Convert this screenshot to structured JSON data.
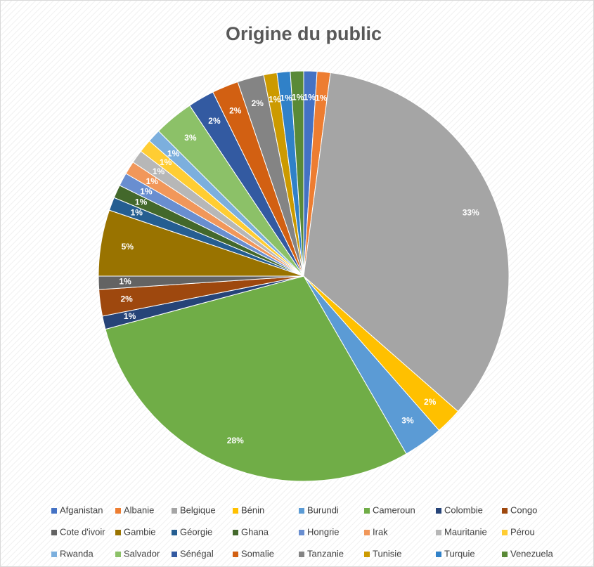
{
  "chart_data": {
    "type": "pie",
    "title": "Origine du public",
    "categories": [
      "Afganistan",
      "Albanie",
      "Belgique",
      "Bénin",
      "Burundi",
      "Cameroun",
      "Colombie",
      "Congo",
      "Cote d'ivoir",
      "Gambie",
      "Géorgie",
      "Ghana",
      "Hongrie",
      "Irak",
      "Mauritanie",
      "Pérou",
      "Rwanda",
      "Salvador",
      "Sénégal",
      "Somalie",
      "Tanzanie",
      "Tunisie",
      "Turquie",
      "Venezuela"
    ],
    "values": [
      1,
      1,
      33,
      2,
      3,
      28,
      1,
      2,
      1,
      5,
      1,
      1,
      1,
      1,
      1,
      1,
      1,
      3,
      2,
      2,
      2,
      1,
      1,
      1
    ],
    "value_labels": [
      "1%",
      "1%",
      "33%",
      "2%",
      "3%",
      "28%",
      "1%",
      "2%",
      "1%",
      "5%",
      "1%",
      "1%",
      "1%",
      "1%",
      "1%",
      "1%",
      "1%",
      "3%",
      "2%",
      "2%",
      "2%",
      "1%",
      "1%",
      "1%"
    ],
    "colors": [
      "#4472c4",
      "#ed7d31",
      "#a5a5a5",
      "#ffc000",
      "#5b9bd5",
      "#70ad47",
      "#264478",
      "#9e480e",
      "#636363",
      "#997300",
      "#255e91",
      "#43682b",
      "#698ed0",
      "#f1975a",
      "#b7b7b7",
      "#ffcd33",
      "#7cafdd",
      "#8cc168",
      "#335aa1",
      "#d26012",
      "#848484",
      "#cc9a00",
      "#3081c8",
      "#5a8a37"
    ],
    "legend": "bottom"
  }
}
